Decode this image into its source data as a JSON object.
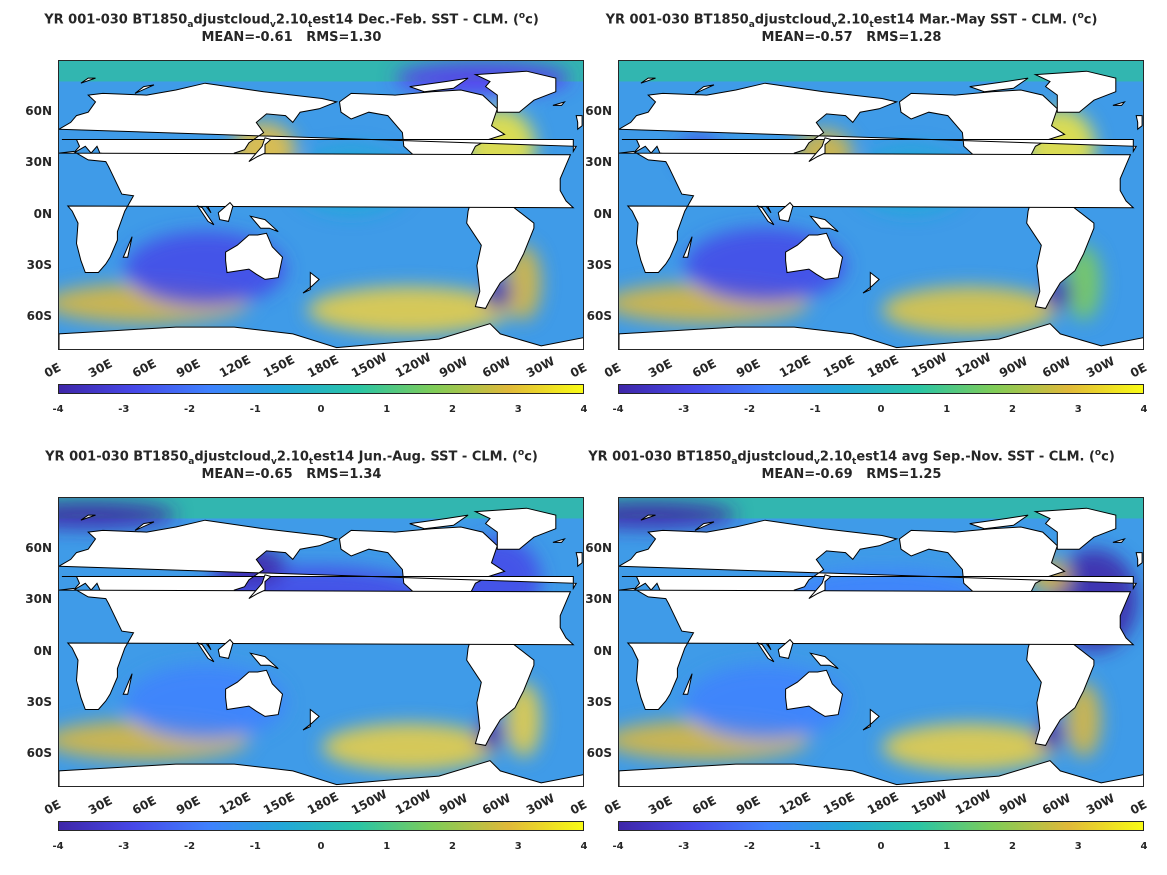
{
  "colors": {
    "land": "#ffffff",
    "ocean_mid": "#32b6b0",
    "colormap": [
      "#3e26a8",
      "#4748e8",
      "#3f81fe",
      "#22a8d8",
      "#2ac5a5",
      "#7fcc58",
      "#e0b93a",
      "#f9fb15"
    ]
  },
  "panels": [
    {
      "title_prefix": "YR 001-030 BT1850",
      "title_sub1": "a",
      "title_mid1": "djustcloud",
      "title_sub2": "v",
      "title_mid2": "2.10",
      "title_sub3": "t",
      "title_suffix": "est14  Dec.-Feb. SST - CLM. (",
      "title_sup": "o",
      "title_end": "c)",
      "stats": "MEAN=-0.61   RMS=1.30",
      "chart_data": {
        "type": "heatmap",
        "season": "Dec.-Feb.",
        "mean": -0.61,
        "rms": 1.3
      }
    },
    {
      "title_prefix": "YR 001-030 BT1850",
      "title_sub1": "a",
      "title_mid1": "djustcloud",
      "title_sub2": "v",
      "title_mid2": "2.10",
      "title_sub3": "t",
      "title_suffix": "est14 Mar.-May SST - CLM. (",
      "title_sup": "o",
      "title_end": "c)",
      "stats": "MEAN=-0.57   RMS=1.28",
      "chart_data": {
        "type": "heatmap",
        "season": "Mar.-May",
        "mean": -0.57,
        "rms": 1.28
      }
    },
    {
      "title_prefix": "YR 001-030 BT1850",
      "title_sub1": "a",
      "title_mid1": "djustcloud",
      "title_sub2": "v",
      "title_mid2": "2.10",
      "title_sub3": "t",
      "title_suffix": "est14 Jun.-Aug. SST - CLM. (",
      "title_sup": "o",
      "title_end": "c)",
      "stats": "MEAN=-0.65   RMS=1.34",
      "chart_data": {
        "type": "heatmap",
        "season": "Jun.-Aug.",
        "mean": -0.65,
        "rms": 1.34
      }
    },
    {
      "title_prefix": "YR 001-030 BT1850",
      "title_sub1": "a",
      "title_mid1": "djustcloud",
      "title_sub2": "v",
      "title_mid2": "2.10",
      "title_sub3": "t",
      "title_suffix": "est14 avg Sep.-Nov. SST - CLM. (",
      "title_sup": "o",
      "title_end": "c)",
      "stats": "MEAN=-0.69   RMS=1.25",
      "chart_data": {
        "type": "heatmap",
        "season": "Sep.-Nov.",
        "mean": -0.69,
        "rms": 1.25
      }
    }
  ],
  "axes": {
    "lat_labels": [
      "60N",
      "30N",
      "0N",
      "30S",
      "60S"
    ],
    "lat_values": [
      60,
      30,
      0,
      -30,
      -60
    ],
    "lon_labels": [
      "0E",
      "30E",
      "60E",
      "90E",
      "120E",
      "150E",
      "180E",
      "150W",
      "120W",
      "90W",
      "60W",
      "30W",
      "0E"
    ],
    "lon_values": [
      0,
      30,
      60,
      90,
      120,
      150,
      180,
      210,
      240,
      270,
      300,
      330,
      360
    ],
    "lat_range": [
      -80,
      90
    ],
    "lon_range": [
      0,
      360
    ]
  },
  "colorbar": {
    "ticks": [
      "-4",
      "-3",
      "-2",
      "-1",
      "0",
      "1",
      "2",
      "3",
      "4"
    ],
    "range": [
      -4,
      4
    ]
  }
}
